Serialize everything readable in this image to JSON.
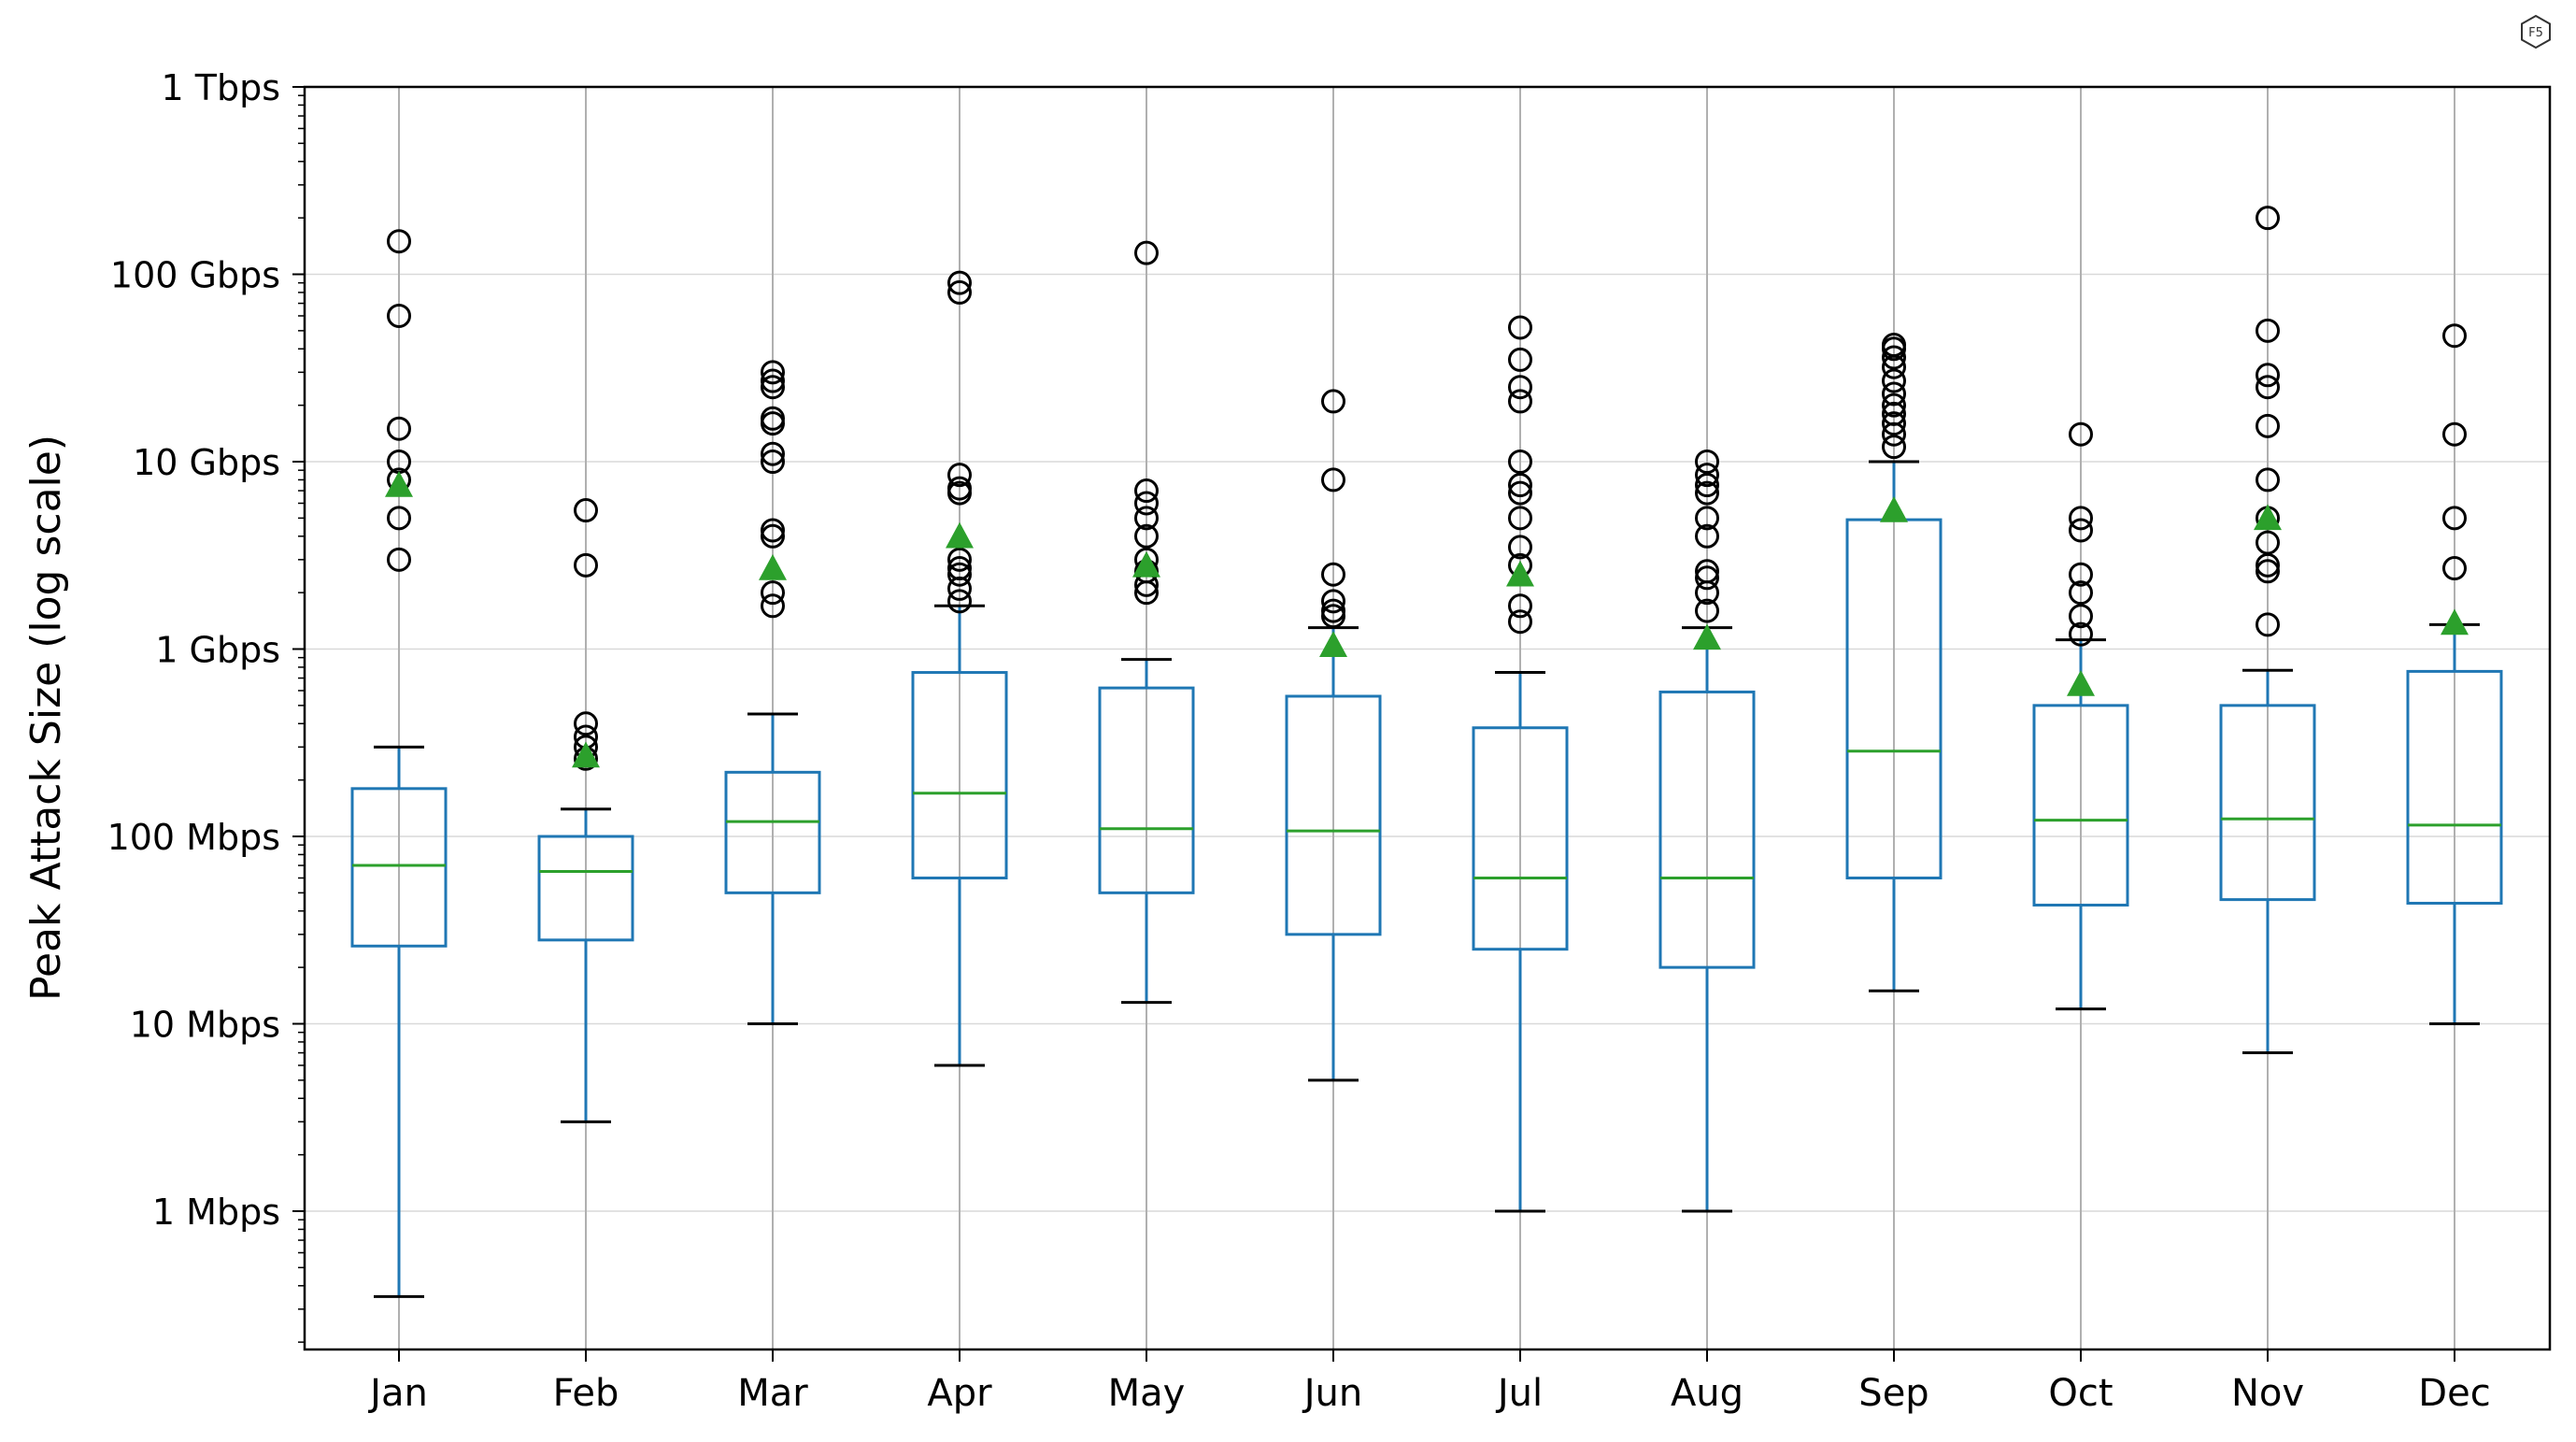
{
  "logo": {
    "text": "F5"
  },
  "chart_data": {
    "type": "box",
    "ylabel": "Peak Attack Size (log scale)",
    "xlabel": "",
    "title": "",
    "y_scale": "log",
    "y_unit": "bps",
    "ylim": [
      150000,
      1000000000000
    ],
    "grid": true,
    "y_ticks": [
      {
        "value": 1000000,
        "label": "1 Mbps"
      },
      {
        "value": 10000000,
        "label": "10 Mbps"
      },
      {
        "value": 100000000,
        "label": "100 Mbps"
      },
      {
        "value": 1000000000,
        "label": "1 Gbps"
      },
      {
        "value": 10000000000,
        "label": "10 Gbps"
      },
      {
        "value": 100000000000,
        "label": "100 Gbps"
      },
      {
        "value": 1000000000000,
        "label": "1 Tbps"
      }
    ],
    "categories": [
      "Jan",
      "Feb",
      "Mar",
      "Apr",
      "May",
      "Jun",
      "Jul",
      "Aug",
      "Sep",
      "Oct",
      "Nov",
      "Dec"
    ],
    "boxes": [
      {
        "label": "Jan",
        "whisker_low": 350000,
        "q1": 26000000,
        "median": 70000000,
        "q3": 180000000,
        "whisker_high": 300000000,
        "mean": 7500000000,
        "outliers": [
          3000000000,
          5000000000,
          8000000000,
          10000000000,
          15000000000,
          60000000000,
          150000000000
        ]
      },
      {
        "label": "Feb",
        "whisker_low": 3000000,
        "q1": 28000000,
        "median": 65000000,
        "q3": 100000000,
        "whisker_high": 140000000,
        "mean": 270000000,
        "outliers": [
          260000000,
          300000000,
          340000000,
          400000000,
          2800000000,
          5500000000
        ]
      },
      {
        "label": "Mar",
        "whisker_low": 10000000,
        "q1": 50000000,
        "median": 120000000,
        "q3": 220000000,
        "whisker_high": 450000000,
        "mean": 2700000000,
        "outliers": [
          1700000000,
          2000000000,
          4000000000,
          4300000000,
          10000000000,
          11000000000,
          16000000000,
          17000000000,
          25000000000,
          27000000000,
          30000000000
        ]
      },
      {
        "label": "Apr",
        "whisker_low": 6000000,
        "q1": 60000000,
        "median": 170000000,
        "q3": 750000000,
        "whisker_high": 1700000000,
        "mean": 4000000000,
        "outliers": [
          1800000000,
          2100000000,
          2500000000,
          2700000000,
          3000000000,
          6800000000,
          7200000000,
          8500000000,
          80000000000,
          90000000000
        ]
      },
      {
        "label": "May",
        "whisker_low": 13000000,
        "q1": 50000000,
        "median": 110000000,
        "q3": 620000000,
        "whisker_high": 880000000,
        "mean": 2800000000,
        "outliers": [
          2000000000,
          2200000000,
          2600000000,
          3000000000,
          4000000000,
          5000000000,
          6000000000,
          7000000000,
          130000000000
        ]
      },
      {
        "label": "Jun",
        "whisker_low": 5000000,
        "q1": 30000000,
        "median": 107000000,
        "q3": 560000000,
        "whisker_high": 1300000000,
        "mean": 1050000000,
        "outliers": [
          1500000000,
          1600000000,
          1800000000,
          2500000000,
          8000000000,
          21000000000
        ]
      },
      {
        "label": "Jul",
        "whisker_low": 1000000,
        "q1": 25000000,
        "median": 60000000,
        "q3": 380000000,
        "whisker_high": 750000000,
        "mean": 2500000000,
        "outliers": [
          1400000000,
          1700000000,
          2800000000,
          3500000000,
          5000000000,
          6800000000,
          7500000000,
          10000000000,
          21000000000,
          25000000000,
          35000000000,
          52000000000
        ]
      },
      {
        "label": "Aug",
        "whisker_low": 1000000,
        "q1": 20000000,
        "median": 60000000,
        "q3": 590000000,
        "whisker_high": 1300000000,
        "mean": 1150000000,
        "outliers": [
          1600000000,
          2000000000,
          2400000000,
          2600000000,
          4000000000,
          5000000000,
          6800000000,
          7500000000,
          8500000000,
          10000000000
        ]
      },
      {
        "label": "Sep",
        "whisker_low": 15000000,
        "q1": 60000000,
        "median": 285000000,
        "q3": 4900000000,
        "whisker_high": 10000000000,
        "mean": 5500000000,
        "outliers": [
          12000000000,
          14000000000,
          16000000000,
          18000000000,
          20000000000,
          23000000000,
          27000000000,
          32000000000,
          36000000000,
          40000000000,
          42000000000
        ]
      },
      {
        "label": "Oct",
        "whisker_low": 12000000,
        "q1": 43000000,
        "median": 122000000,
        "q3": 500000000,
        "whisker_high": 1120000000,
        "mean": 650000000,
        "outliers": [
          1200000000,
          1500000000,
          2000000000,
          2500000000,
          4300000000,
          5000000000,
          14000000000
        ]
      },
      {
        "label": "Nov",
        "whisker_low": 7000000,
        "q1": 46000000,
        "median": 124000000,
        "q3": 500000000,
        "whisker_high": 770000000,
        "mean": 5000000000,
        "outliers": [
          1350000000,
          2600000000,
          2800000000,
          3700000000,
          5000000000,
          8000000000,
          15500000000,
          25000000000,
          29000000000,
          50000000000,
          200000000000
        ]
      },
      {
        "label": "Dec",
        "whisker_low": 10000000,
        "q1": 44000000,
        "median": 115000000,
        "q3": 760000000,
        "whisker_high": 1350000000,
        "mean": 1380000000,
        "outliers": [
          2700000000,
          5000000000,
          14000000000,
          47000000000
        ]
      }
    ],
    "colors": {
      "box": "#1f77b4",
      "median": "#2ca02c",
      "mean": "#2ca02c",
      "whisker_cap": "#000000",
      "outlier": "#000000",
      "grid": "#d9d9d9",
      "x_grid": "#b0b0b0"
    }
  }
}
